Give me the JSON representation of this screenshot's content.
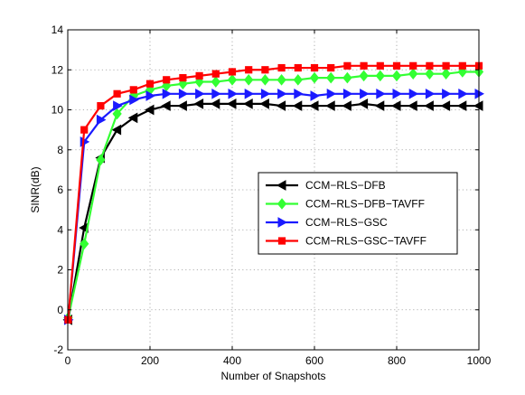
{
  "chart_data": {
    "type": "line",
    "xlabel": "Number of Snapshots",
    "ylabel": "SINR(dB)",
    "xlim": [
      0,
      1000
    ],
    "ylim": [
      -2,
      14
    ],
    "xticks": [
      0,
      200,
      400,
      600,
      800,
      1000
    ],
    "yticks": [
      -2,
      0,
      2,
      4,
      6,
      8,
      10,
      12,
      14
    ],
    "grid": true,
    "legend_position": "center-right",
    "x": [
      1,
      40,
      80,
      120,
      160,
      200,
      240,
      280,
      320,
      360,
      400,
      440,
      480,
      520,
      560,
      600,
      640,
      680,
      720,
      760,
      800,
      840,
      880,
      920,
      960,
      1000
    ],
    "series": [
      {
        "name": "CCM−RLS−DFB",
        "color": "#000000",
        "marker": "triangle-left",
        "values": [
          -0.5,
          4.1,
          7.6,
          9.0,
          9.6,
          10.0,
          10.2,
          10.2,
          10.3,
          10.3,
          10.3,
          10.3,
          10.3,
          10.2,
          10.2,
          10.2,
          10.2,
          10.2,
          10.3,
          10.2,
          10.2,
          10.2,
          10.2,
          10.2,
          10.2,
          10.2
        ]
      },
      {
        "name": "CCM−RLS−DFB−TAVFF",
        "color": "#33ff33",
        "marker": "diamond",
        "values": [
          -0.4,
          3.3,
          7.5,
          9.8,
          10.7,
          11.0,
          11.2,
          11.3,
          11.4,
          11.4,
          11.5,
          11.5,
          11.5,
          11.5,
          11.5,
          11.6,
          11.6,
          11.6,
          11.7,
          11.7,
          11.7,
          11.8,
          11.8,
          11.8,
          11.9,
          11.9
        ]
      },
      {
        "name": "CCM−RLS−GSC",
        "color": "#1a1aff",
        "marker": "triangle-right",
        "values": [
          -0.5,
          8.4,
          9.5,
          10.2,
          10.5,
          10.7,
          10.8,
          10.8,
          10.8,
          10.8,
          10.8,
          10.8,
          10.8,
          10.8,
          10.8,
          10.7,
          10.8,
          10.8,
          10.8,
          10.8,
          10.8,
          10.8,
          10.8,
          10.8,
          10.8,
          10.8
        ]
      },
      {
        "name": "CCM−RLS−GSC−TAVFF",
        "color": "#ff0000",
        "marker": "square",
        "values": [
          -0.5,
          9.0,
          10.2,
          10.8,
          11.0,
          11.3,
          11.5,
          11.6,
          11.7,
          11.8,
          11.9,
          12.0,
          12.0,
          12.1,
          12.1,
          12.1,
          12.1,
          12.2,
          12.2,
          12.2,
          12.2,
          12.2,
          12.2,
          12.2,
          12.2,
          12.2
        ]
      }
    ]
  }
}
